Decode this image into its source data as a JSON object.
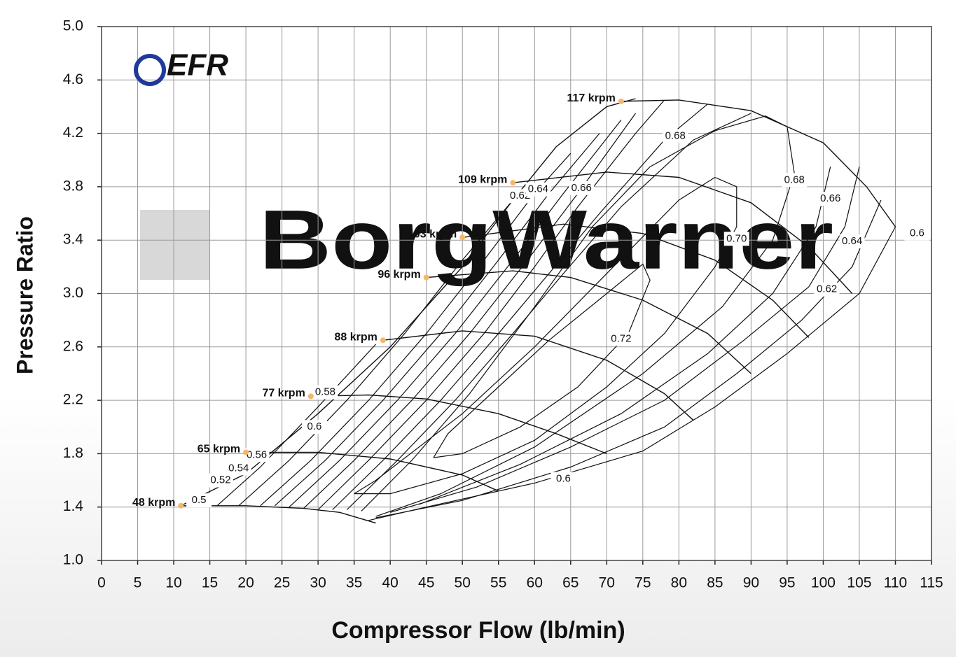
{
  "chart_data": {
    "type": "compressor_map",
    "xlabel": "Compressor Flow (lb/min)",
    "ylabel": "Pressure Ratio",
    "logo_text": "EFR",
    "watermark": "BorgWarner",
    "xlim": [
      0,
      115
    ],
    "ylim": [
      1,
      5
    ],
    "xticks": [
      0,
      5,
      10,
      15,
      20,
      25,
      30,
      35,
      40,
      45,
      50,
      55,
      60,
      65,
      70,
      75,
      80,
      85,
      90,
      95,
      100,
      105,
      110,
      115
    ],
    "yticks": [
      {
        "value": 1,
        "label": "1.0"
      },
      1.4,
      1.8,
      2.2,
      2.6,
      {
        "value": 3,
        "label": "3.0"
      },
      3.4,
      3.8,
      4.2,
      4.6,
      {
        "value": 5,
        "label": "5.0"
      }
    ],
    "grid": true,
    "speed_color": "#111111",
    "marker_color": "#f5b86a",
    "surge_line": {
      "x": [
        11,
        20,
        30,
        40,
        50,
        57,
        63,
        70,
        74
      ],
      "y": [
        1.41,
        1.65,
        2.1,
        2.6,
        3.2,
        3.7,
        4.1,
        4.4,
        4.46
      ]
    },
    "speed_lines": [
      {
        "name": "48 krpm",
        "x": [
          11,
          20,
          28,
          33,
          38
        ],
        "y": [
          1.41,
          1.41,
          1.39,
          1.36,
          1.28
        ]
      },
      {
        "name": "65 krpm",
        "x": [
          20,
          30,
          40,
          50,
          55
        ],
        "y": [
          1.81,
          1.81,
          1.76,
          1.64,
          1.52
        ]
      },
      {
        "name": "77 krpm",
        "x": [
          29,
          37,
          45,
          55,
          63,
          70
        ],
        "y": [
          2.23,
          2.24,
          2.21,
          2.1,
          1.95,
          1.8
        ]
      },
      {
        "name": "88 krpm",
        "x": [
          39,
          50,
          60,
          70,
          78,
          82
        ],
        "y": [
          2.65,
          2.72,
          2.68,
          2.5,
          2.25,
          2.05
        ]
      },
      {
        "name": "96 krpm",
        "x": [
          45,
          57,
          65,
          75,
          84,
          90
        ],
        "y": [
          3.12,
          3.17,
          3.12,
          2.95,
          2.7,
          2.4
        ]
      },
      {
        "name": "103 krpm",
        "x": [
          50,
          64,
          75,
          85,
          93,
          98
        ],
        "y": [
          3.42,
          3.52,
          3.45,
          3.25,
          2.95,
          2.67
        ]
      },
      {
        "name": "109 krpm",
        "x": [
          57,
          70,
          80,
          90,
          98,
          104
        ],
        "y": [
          3.83,
          3.91,
          3.87,
          3.68,
          3.35,
          3.0
        ]
      },
      {
        "name": "117 krpm",
        "x": [
          72,
          80,
          90,
          100,
          106,
          110
        ],
        "y": [
          4.44,
          4.45,
          4.37,
          4.13,
          3.8,
          3.5
        ]
      }
    ],
    "efficiency_contours": [
      {
        "efficiency": 0.5,
        "x": [
          16,
          22,
          30,
          38
        ],
        "y": [
          1.41,
          1.7,
          2.15,
          2.62
        ],
        "labels": [
          {
            "x": 13.5,
            "y": 1.45
          }
        ]
      },
      {
        "efficiency": 0.52,
        "x": [
          19,
          26,
          34,
          42,
          50,
          57
        ],
        "y": [
          1.41,
          1.75,
          2.2,
          2.7,
          3.25,
          3.7
        ],
        "labels": [
          {
            "x": 16.5,
            "y": 1.6
          }
        ]
      },
      {
        "efficiency": 0.54,
        "x": [
          22,
          29,
          37,
          45,
          53,
          60,
          65
        ],
        "y": [
          1.41,
          1.75,
          2.2,
          2.7,
          3.25,
          3.75,
          4.05
        ],
        "labels": [
          {
            "x": 19,
            "y": 1.69
          }
        ]
      },
      {
        "efficiency": 0.56,
        "x": [
          24,
          31,
          39,
          47,
          55,
          62,
          69
        ],
        "y": [
          1.41,
          1.75,
          2.2,
          2.7,
          3.25,
          3.75,
          4.2
        ],
        "labels": [
          {
            "x": 21.5,
            "y": 1.79
          }
        ]
      },
      {
        "efficiency": 0.58,
        "x": [
          26,
          33,
          41,
          49,
          57,
          64,
          72
        ],
        "y": [
          1.4,
          1.75,
          2.2,
          2.7,
          3.25,
          3.75,
          4.3
        ],
        "labels": [
          {
            "x": 31,
            "y": 2.26
          }
        ]
      },
      {
        "efficiency": 0.6,
        "x": [
          28,
          35,
          43,
          51,
          59,
          66,
          74,
          null,
          110,
          105,
          95,
          85,
          75,
          60,
          45,
          37
        ],
        "y": [
          1.39,
          1.75,
          2.2,
          2.7,
          3.25,
          3.75,
          4.35,
          null,
          3.5,
          3.0,
          2.55,
          2.15,
          1.82,
          1.58,
          1.4,
          1.3
        ],
        "labels": [
          {
            "x": 29.5,
            "y": 2.0
          },
          {
            "x": 64,
            "y": 1.61
          },
          {
            "x": 113,
            "y": 3.45
          }
        ]
      },
      {
        "efficiency": 0.62,
        "x": [
          30,
          37,
          45,
          53,
          60,
          66,
          74,
          78,
          null,
          108,
          104,
          97,
          88,
          78,
          65,
          50,
          38
        ],
        "y": [
          1.38,
          1.75,
          2.2,
          2.7,
          3.2,
          3.65,
          4.2,
          4.45,
          null,
          3.7,
          3.2,
          2.8,
          2.4,
          2.0,
          1.7,
          1.45,
          1.32
        ],
        "labels": [
          {
            "x": 58,
            "y": 3.73
          },
          {
            "x": 100.5,
            "y": 3.03
          }
        ]
      },
      {
        "efficiency": 0.64,
        "x": [
          32,
          39,
          47,
          55,
          62,
          69,
          78,
          84,
          null,
          105,
          103,
          98,
          89,
          78,
          65,
          52,
          40
        ],
        "y": [
          1.38,
          1.75,
          2.2,
          2.7,
          3.15,
          3.6,
          4.15,
          4.42,
          null,
          3.95,
          3.5,
          3.05,
          2.65,
          2.2,
          1.85,
          1.55,
          1.36
        ],
        "labels": [
          {
            "x": 60.5,
            "y": 3.78
          },
          {
            "x": 104,
            "y": 3.39
          }
        ]
      },
      {
        "efficiency": 0.66,
        "x": [
          34,
          41,
          49,
          57,
          64,
          72,
          82,
          90,
          null,
          101,
          99,
          93,
          84,
          72,
          58,
          44
        ],
        "y": [
          1.38,
          1.75,
          2.2,
          2.7,
          3.15,
          3.65,
          4.15,
          4.35,
          null,
          3.95,
          3.5,
          3.0,
          2.55,
          2.1,
          1.72,
          1.42
        ],
        "labels": [
          {
            "x": 66.5,
            "y": 3.79
          },
          {
            "x": 101,
            "y": 3.71
          }
        ]
      },
      {
        "efficiency": 0.68,
        "x": [
          36,
          43,
          51,
          60,
          68,
          76,
          85,
          92,
          95,
          96,
          93,
          86,
          75,
          60,
          47,
          38
        ],
        "y": [
          1.37,
          1.75,
          2.25,
          2.9,
          3.5,
          3.95,
          4.22,
          4.33,
          4.25,
          3.9,
          3.4,
          2.9,
          2.4,
          1.85,
          1.5,
          1.33
        ],
        "labels": [
          {
            "x": 79.5,
            "y": 4.18
          },
          {
            "x": 96,
            "y": 3.85
          }
        ]
      },
      {
        "efficiency": 0.7,
        "label": "0.70",
        "x": [
          35,
          38,
          50,
          60,
          70,
          80,
          85,
          88,
          88,
          85,
          78,
          70,
          60,
          50,
          40,
          35
        ],
        "y": [
          1.5,
          1.6,
          2.1,
          2.6,
          3.15,
          3.7,
          3.87,
          3.8,
          3.5,
          3.2,
          2.7,
          2.3,
          1.9,
          1.65,
          1.5,
          1.5
        ],
        "labels": [
          {
            "x": 88,
            "y": 3.41
          }
        ]
      },
      {
        "efficiency": 0.72,
        "x": [
          46,
          48,
          55,
          62,
          70,
          75,
          76,
          73,
          66,
          58,
          50,
          46
        ],
        "y": [
          1.77,
          1.95,
          2.3,
          2.65,
          3.0,
          3.22,
          3.1,
          2.7,
          2.3,
          2.0,
          1.8,
          1.77
        ],
        "labels": [
          {
            "x": 72,
            "y": 2.66
          }
        ]
      }
    ]
  }
}
